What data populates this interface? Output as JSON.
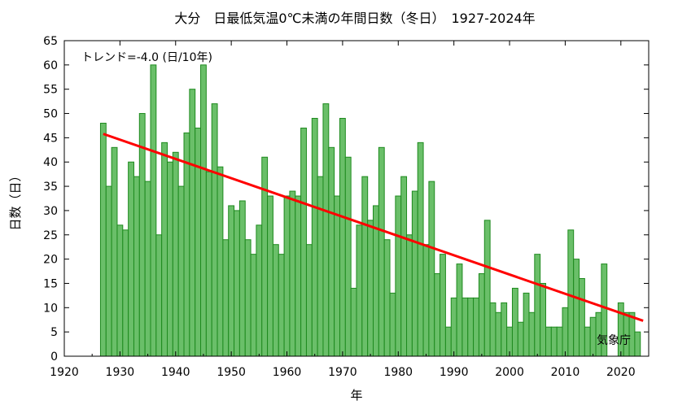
{
  "chart_data": {
    "type": "bar",
    "title": "大分　日最低気温0℃未満の年間日数（冬日）　1927-2024年",
    "xlabel": "年",
    "ylabel": "日数（日）",
    "xlim": [
      1920,
      2025
    ],
    "ylim": [
      0,
      65
    ],
    "xticks": [
      1920,
      1930,
      1940,
      1950,
      1960,
      1970,
      1980,
      1990,
      2000,
      2010,
      2020
    ],
    "yticks": [
      0,
      5,
      10,
      15,
      20,
      25,
      30,
      35,
      40,
      45,
      50,
      55,
      60,
      65
    ],
    "grid": false,
    "x": [
      1927,
      1928,
      1929,
      1930,
      1931,
      1932,
      1933,
      1934,
      1935,
      1936,
      1937,
      1938,
      1939,
      1940,
      1941,
      1942,
      1943,
      1944,
      1945,
      1946,
      1947,
      1948,
      1949,
      1950,
      1951,
      1952,
      1953,
      1954,
      1955,
      1956,
      1957,
      1958,
      1959,
      1960,
      1961,
      1962,
      1963,
      1964,
      1965,
      1966,
      1967,
      1968,
      1969,
      1970,
      1971,
      1972,
      1973,
      1974,
      1975,
      1976,
      1977,
      1978,
      1979,
      1980,
      1981,
      1982,
      1983,
      1984,
      1985,
      1986,
      1987,
      1988,
      1989,
      1990,
      1991,
      1992,
      1993,
      1994,
      1995,
      1996,
      1997,
      1998,
      1999,
      2000,
      2001,
      2002,
      2003,
      2004,
      2005,
      2006,
      2007,
      2008,
      2009,
      2010,
      2011,
      2012,
      2013,
      2014,
      2015,
      2016,
      2017,
      2018,
      2019,
      2020,
      2021,
      2022,
      2023,
      2024
    ],
    "values": [
      48,
      35,
      43,
      27,
      26,
      40,
      37,
      50,
      36,
      60,
      25,
      44,
      40,
      42,
      35,
      46,
      55,
      47,
      60,
      38,
      52,
      39,
      24,
      31,
      30,
      32,
      24,
      21,
      27,
      41,
      33,
      23,
      21,
      33,
      34,
      33,
      47,
      23,
      49,
      37,
      52,
      43,
      33,
      49,
      41,
      14,
      27,
      37,
      28,
      31,
      43,
      24,
      13,
      33,
      37,
      25,
      34,
      44,
      23,
      36,
      17,
      21,
      6,
      12,
      19,
      12,
      12,
      12,
      17,
      28,
      11,
      9,
      11,
      6,
      14,
      7,
      13,
      9,
      21,
      15,
      6,
      6,
      6,
      10,
      26,
      20,
      16,
      6,
      8,
      9,
      19,
      0,
      0,
      11,
      9,
      9,
      5,
      0
    ],
    "bar_color": "#6abf69",
    "bar_edge_color": "#1e8a1e",
    "trend": {
      "label": "トレンド=-4.0 (日/10年)",
      "start": [
        1927,
        45.8
      ],
      "end": [
        2024,
        7.3
      ],
      "color": "#ff0000"
    },
    "source_label": "気象庁"
  }
}
